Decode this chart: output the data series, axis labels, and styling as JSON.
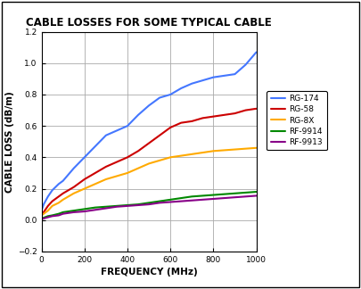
{
  "title": "CABLE LOSSES FOR SOME TYPICAL CABLE",
  "xlabel": "FREQUENCY (MHz)",
  "ylabel": "CABLE LOSS (dB/m)",
  "xlim": [
    0,
    1000
  ],
  "ylim": [
    -0.2,
    1.2
  ],
  "xticks": [
    0,
    200,
    400,
    600,
    800,
    1000
  ],
  "yticks": [
    -0.2,
    0.0,
    0.2,
    0.4,
    0.6,
    0.8,
    1.0,
    1.2
  ],
  "lines": {
    "RG-174": {
      "color": "#4477FF",
      "freq": [
        0,
        10,
        30,
        50,
        80,
        100,
        150,
        200,
        250,
        300,
        350,
        400,
        450,
        500,
        550,
        600,
        650,
        700,
        750,
        800,
        850,
        900,
        950,
        1000
      ],
      "loss": [
        0.06,
        0.1,
        0.15,
        0.19,
        0.23,
        0.25,
        0.33,
        0.4,
        0.47,
        0.54,
        0.57,
        0.6,
        0.67,
        0.73,
        0.78,
        0.8,
        0.84,
        0.87,
        0.89,
        0.91,
        0.92,
        0.93,
        0.99,
        1.07
      ]
    },
    "RG-58": {
      "color": "#CC0000",
      "freq": [
        0,
        10,
        30,
        50,
        80,
        100,
        150,
        200,
        250,
        300,
        350,
        400,
        450,
        500,
        550,
        600,
        650,
        700,
        750,
        800,
        850,
        900,
        950,
        1000
      ],
      "loss": [
        0.03,
        0.05,
        0.09,
        0.12,
        0.15,
        0.17,
        0.21,
        0.26,
        0.3,
        0.34,
        0.37,
        0.4,
        0.44,
        0.49,
        0.54,
        0.59,
        0.62,
        0.63,
        0.65,
        0.66,
        0.67,
        0.68,
        0.7,
        0.71
      ]
    },
    "RG-8X": {
      "color": "#FFAA00",
      "freq": [
        0,
        10,
        30,
        50,
        80,
        100,
        150,
        200,
        250,
        300,
        350,
        400,
        450,
        500,
        550,
        600,
        650,
        700,
        750,
        800,
        850,
        900,
        950,
        1000
      ],
      "loss": [
        0.03,
        0.04,
        0.06,
        0.09,
        0.11,
        0.13,
        0.17,
        0.2,
        0.23,
        0.26,
        0.28,
        0.3,
        0.33,
        0.36,
        0.38,
        0.4,
        0.41,
        0.42,
        0.43,
        0.44,
        0.445,
        0.45,
        0.455,
        0.46
      ]
    },
    "RF-9914": {
      "color": "#008800",
      "freq": [
        0,
        10,
        30,
        50,
        80,
        100,
        150,
        200,
        250,
        300,
        350,
        400,
        450,
        500,
        550,
        600,
        650,
        700,
        750,
        800,
        850,
        900,
        950,
        1000
      ],
      "loss": [
        0.01,
        0.015,
        0.025,
        0.03,
        0.04,
        0.05,
        0.06,
        0.07,
        0.08,
        0.085,
        0.09,
        0.095,
        0.1,
        0.11,
        0.12,
        0.13,
        0.14,
        0.15,
        0.155,
        0.16,
        0.165,
        0.17,
        0.175,
        0.18
      ]
    },
    "RF-9913": {
      "color": "#880088",
      "freq": [
        0,
        10,
        30,
        50,
        80,
        100,
        150,
        200,
        250,
        300,
        350,
        400,
        450,
        500,
        550,
        600,
        650,
        700,
        750,
        800,
        850,
        900,
        950,
        1000
      ],
      "loss": [
        0.005,
        0.01,
        0.018,
        0.025,
        0.03,
        0.04,
        0.05,
        0.055,
        0.065,
        0.075,
        0.085,
        0.09,
        0.095,
        0.1,
        0.11,
        0.115,
        0.12,
        0.125,
        0.13,
        0.135,
        0.14,
        0.145,
        0.15,
        0.155
      ]
    }
  },
  "background_color": "#FFFFFF",
  "grid_color": "#AAAAAA",
  "legend_fontsize": 6.5,
  "title_fontsize": 8.5,
  "axis_label_fontsize": 7.5,
  "tick_fontsize": 6.5,
  "linewidth": 1.5
}
